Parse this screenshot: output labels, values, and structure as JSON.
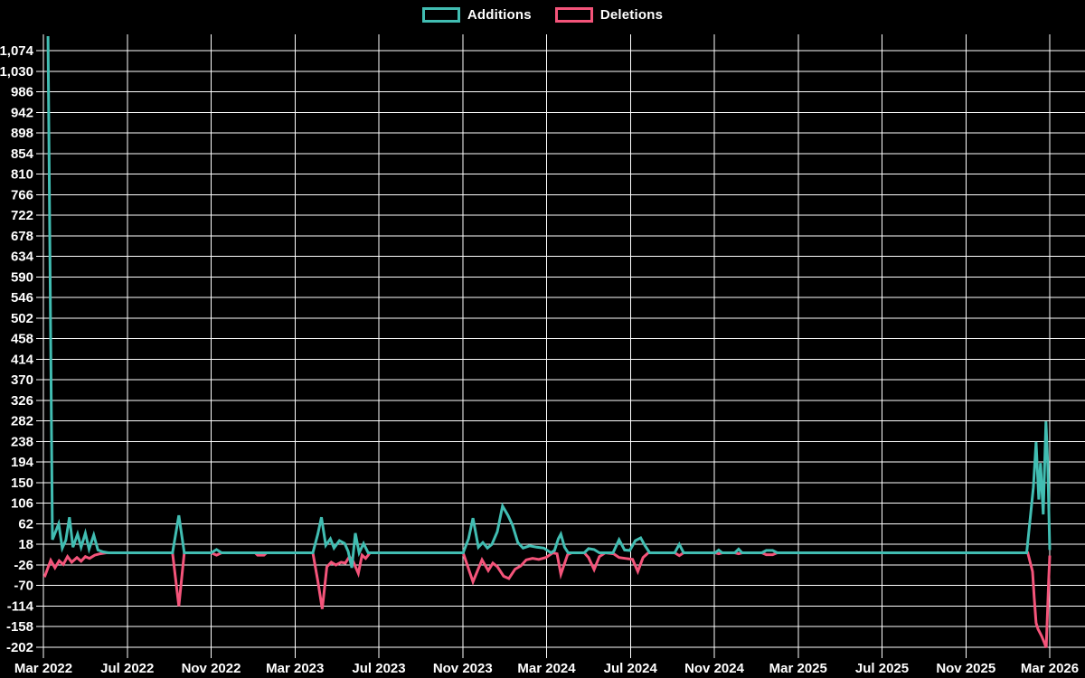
{
  "page": {
    "background": "#000000"
  },
  "legend": {
    "items": [
      {
        "label": "Additions",
        "color": "#41bdb2"
      },
      {
        "label": "Deletions",
        "color": "#f4547a"
      }
    ]
  },
  "chart_data": {
    "type": "line",
    "title": "",
    "xlabel": "",
    "ylabel": "",
    "grid": true,
    "legend_position": "top-center",
    "background_color": "#000000",
    "gridline_color": "#ffffff",
    "x_axis": {
      "unit": "months since Mar 2022",
      "range_months": [
        0,
        48
      ],
      "tick_labels": [
        "Mar 2022",
        "Jul 2022",
        "Nov 2022",
        "Mar 2023",
        "Jul 2023",
        "Nov 2023",
        "Mar 2024",
        "Jul 2024",
        "Nov 2024",
        "Mar 2025",
        "Jul 2025",
        "Nov 2025",
        "Mar 2026"
      ]
    },
    "y_axis": {
      "tick_min": -202,
      "tick_max": 1074,
      "tick_step": 44,
      "plot_min": -215,
      "plot_max": 1109
    },
    "series": [
      {
        "name": "Additions",
        "color": "#41bdb2",
        "points": [
          [
            0.22,
            1105
          ],
          [
            0.43,
            28
          ],
          [
            0.73,
            62
          ],
          [
            0.9,
            10
          ],
          [
            1.07,
            27
          ],
          [
            1.24,
            76
          ],
          [
            1.41,
            12
          ],
          [
            1.63,
            40
          ],
          [
            1.8,
            12
          ],
          [
            2.0,
            42
          ],
          [
            2.18,
            8
          ],
          [
            2.4,
            38
          ],
          [
            2.6,
            6
          ],
          [
            2.85,
            2
          ],
          [
            3.1,
            0
          ],
          [
            6.16,
            0
          ],
          [
            6.46,
            80
          ],
          [
            6.72,
            0
          ],
          [
            8.0,
            0
          ],
          [
            8.26,
            7
          ],
          [
            8.5,
            0
          ],
          [
            12.85,
            0
          ],
          [
            13.09,
            40
          ],
          [
            13.26,
            76
          ],
          [
            13.47,
            16
          ],
          [
            13.69,
            30
          ],
          [
            13.86,
            10
          ],
          [
            14.12,
            26
          ],
          [
            14.37,
            20
          ],
          [
            14.54,
            3
          ],
          [
            14.71,
            -32
          ],
          [
            14.88,
            42
          ],
          [
            15.06,
            0
          ],
          [
            15.27,
            20
          ],
          [
            15.49,
            0
          ],
          [
            20.02,
            0
          ],
          [
            20.28,
            30
          ],
          [
            20.49,
            74
          ],
          [
            20.75,
            12
          ],
          [
            20.96,
            22
          ],
          [
            21.18,
            10
          ],
          [
            21.39,
            18
          ],
          [
            21.65,
            45
          ],
          [
            21.9,
            100
          ],
          [
            22.16,
            80
          ],
          [
            22.37,
            60
          ],
          [
            22.63,
            22
          ],
          [
            22.88,
            10
          ],
          [
            23.19,
            15
          ],
          [
            23.53,
            12
          ],
          [
            23.87,
            10
          ],
          [
            24.21,
            0
          ],
          [
            24.38,
            5
          ],
          [
            24.56,
            30
          ],
          [
            24.68,
            40
          ],
          [
            24.86,
            12
          ],
          [
            25.03,
            0
          ],
          [
            25.8,
            0
          ],
          [
            26.0,
            9
          ],
          [
            26.27,
            7
          ],
          [
            26.52,
            0
          ],
          [
            27.17,
            0
          ],
          [
            27.46,
            28
          ],
          [
            27.72,
            6
          ],
          [
            27.97,
            5
          ],
          [
            28.23,
            26
          ],
          [
            28.49,
            32
          ],
          [
            28.7,
            15
          ],
          [
            28.92,
            0
          ],
          [
            30.11,
            0
          ],
          [
            30.33,
            18
          ],
          [
            30.54,
            0
          ],
          [
            32.04,
            0
          ],
          [
            32.21,
            6
          ],
          [
            32.38,
            0
          ],
          [
            32.98,
            0
          ],
          [
            33.16,
            8
          ],
          [
            33.33,
            0
          ],
          [
            34.27,
            0
          ],
          [
            34.48,
            5
          ],
          [
            34.78,
            5
          ],
          [
            35.0,
            0
          ],
          [
            46.9,
            0
          ],
          [
            47.22,
            140
          ],
          [
            47.35,
            237
          ],
          [
            47.48,
            114
          ],
          [
            47.56,
            192
          ],
          [
            47.69,
            82
          ],
          [
            47.82,
            281
          ],
          [
            47.91,
            185
          ],
          [
            48.0,
            6
          ]
        ]
      },
      {
        "name": "Deletions",
        "color": "#f4547a",
        "points": [
          [
            0.05,
            -52
          ],
          [
            0.35,
            -16
          ],
          [
            0.55,
            -32
          ],
          [
            0.75,
            -17
          ],
          [
            0.95,
            -25
          ],
          [
            1.15,
            -8
          ],
          [
            1.35,
            -20
          ],
          [
            1.6,
            -10
          ],
          [
            1.8,
            -18
          ],
          [
            2.0,
            -8
          ],
          [
            2.2,
            -12
          ],
          [
            2.45,
            -5
          ],
          [
            2.7,
            -2
          ],
          [
            3.0,
            0
          ],
          [
            6.16,
            0
          ],
          [
            6.46,
            -114
          ],
          [
            6.72,
            0
          ],
          [
            8.0,
            0
          ],
          [
            8.26,
            -5
          ],
          [
            8.5,
            0
          ],
          [
            10.1,
            0
          ],
          [
            10.22,
            -5
          ],
          [
            10.52,
            -5
          ],
          [
            10.65,
            0
          ],
          [
            12.85,
            0
          ],
          [
            13.09,
            -60
          ],
          [
            13.3,
            -120
          ],
          [
            13.52,
            -30
          ],
          [
            13.73,
            -20
          ],
          [
            13.95,
            -26
          ],
          [
            14.2,
            -20
          ],
          [
            14.4,
            -22
          ],
          [
            14.6,
            -8
          ],
          [
            14.77,
            -18
          ],
          [
            15.02,
            -44
          ],
          [
            15.2,
            -5
          ],
          [
            15.37,
            -12
          ],
          [
            15.58,
            0
          ],
          [
            20.02,
            0
          ],
          [
            20.49,
            -62
          ],
          [
            20.92,
            -15
          ],
          [
            21.22,
            -38
          ],
          [
            21.44,
            -22
          ],
          [
            21.66,
            -30
          ],
          [
            21.95,
            -50
          ],
          [
            22.2,
            -55
          ],
          [
            22.5,
            -35
          ],
          [
            22.77,
            -28
          ],
          [
            23.03,
            -15
          ],
          [
            23.33,
            -12
          ],
          [
            23.63,
            -14
          ],
          [
            23.97,
            -10
          ],
          [
            24.3,
            0
          ],
          [
            24.5,
            -2
          ],
          [
            24.68,
            -46
          ],
          [
            25.0,
            -4
          ],
          [
            25.2,
            0
          ],
          [
            25.8,
            0
          ],
          [
            26.0,
            -10
          ],
          [
            26.27,
            -36
          ],
          [
            26.52,
            -8
          ],
          [
            26.8,
            0
          ],
          [
            27.2,
            -2
          ],
          [
            27.46,
            -10
          ],
          [
            27.75,
            -12
          ],
          [
            28.1,
            -14
          ],
          [
            28.35,
            -40
          ],
          [
            28.6,
            -10
          ],
          [
            28.85,
            0
          ],
          [
            30.11,
            0
          ],
          [
            30.33,
            -6
          ],
          [
            30.54,
            0
          ],
          [
            32.04,
            0
          ],
          [
            32.21,
            -2
          ],
          [
            32.38,
            0
          ],
          [
            32.98,
            0
          ],
          [
            33.16,
            -2
          ],
          [
            33.33,
            0
          ],
          [
            34.27,
            0
          ],
          [
            34.48,
            -4
          ],
          [
            34.78,
            -4
          ],
          [
            35.0,
            0
          ],
          [
            46.95,
            0
          ],
          [
            47.18,
            -40
          ],
          [
            47.26,
            -95
          ],
          [
            47.35,
            -150
          ],
          [
            47.44,
            -163
          ],
          [
            47.61,
            -178
          ],
          [
            47.74,
            -192
          ],
          [
            47.83,
            -203
          ],
          [
            47.95,
            -60
          ],
          [
            48.0,
            -6
          ]
        ]
      }
    ]
  }
}
